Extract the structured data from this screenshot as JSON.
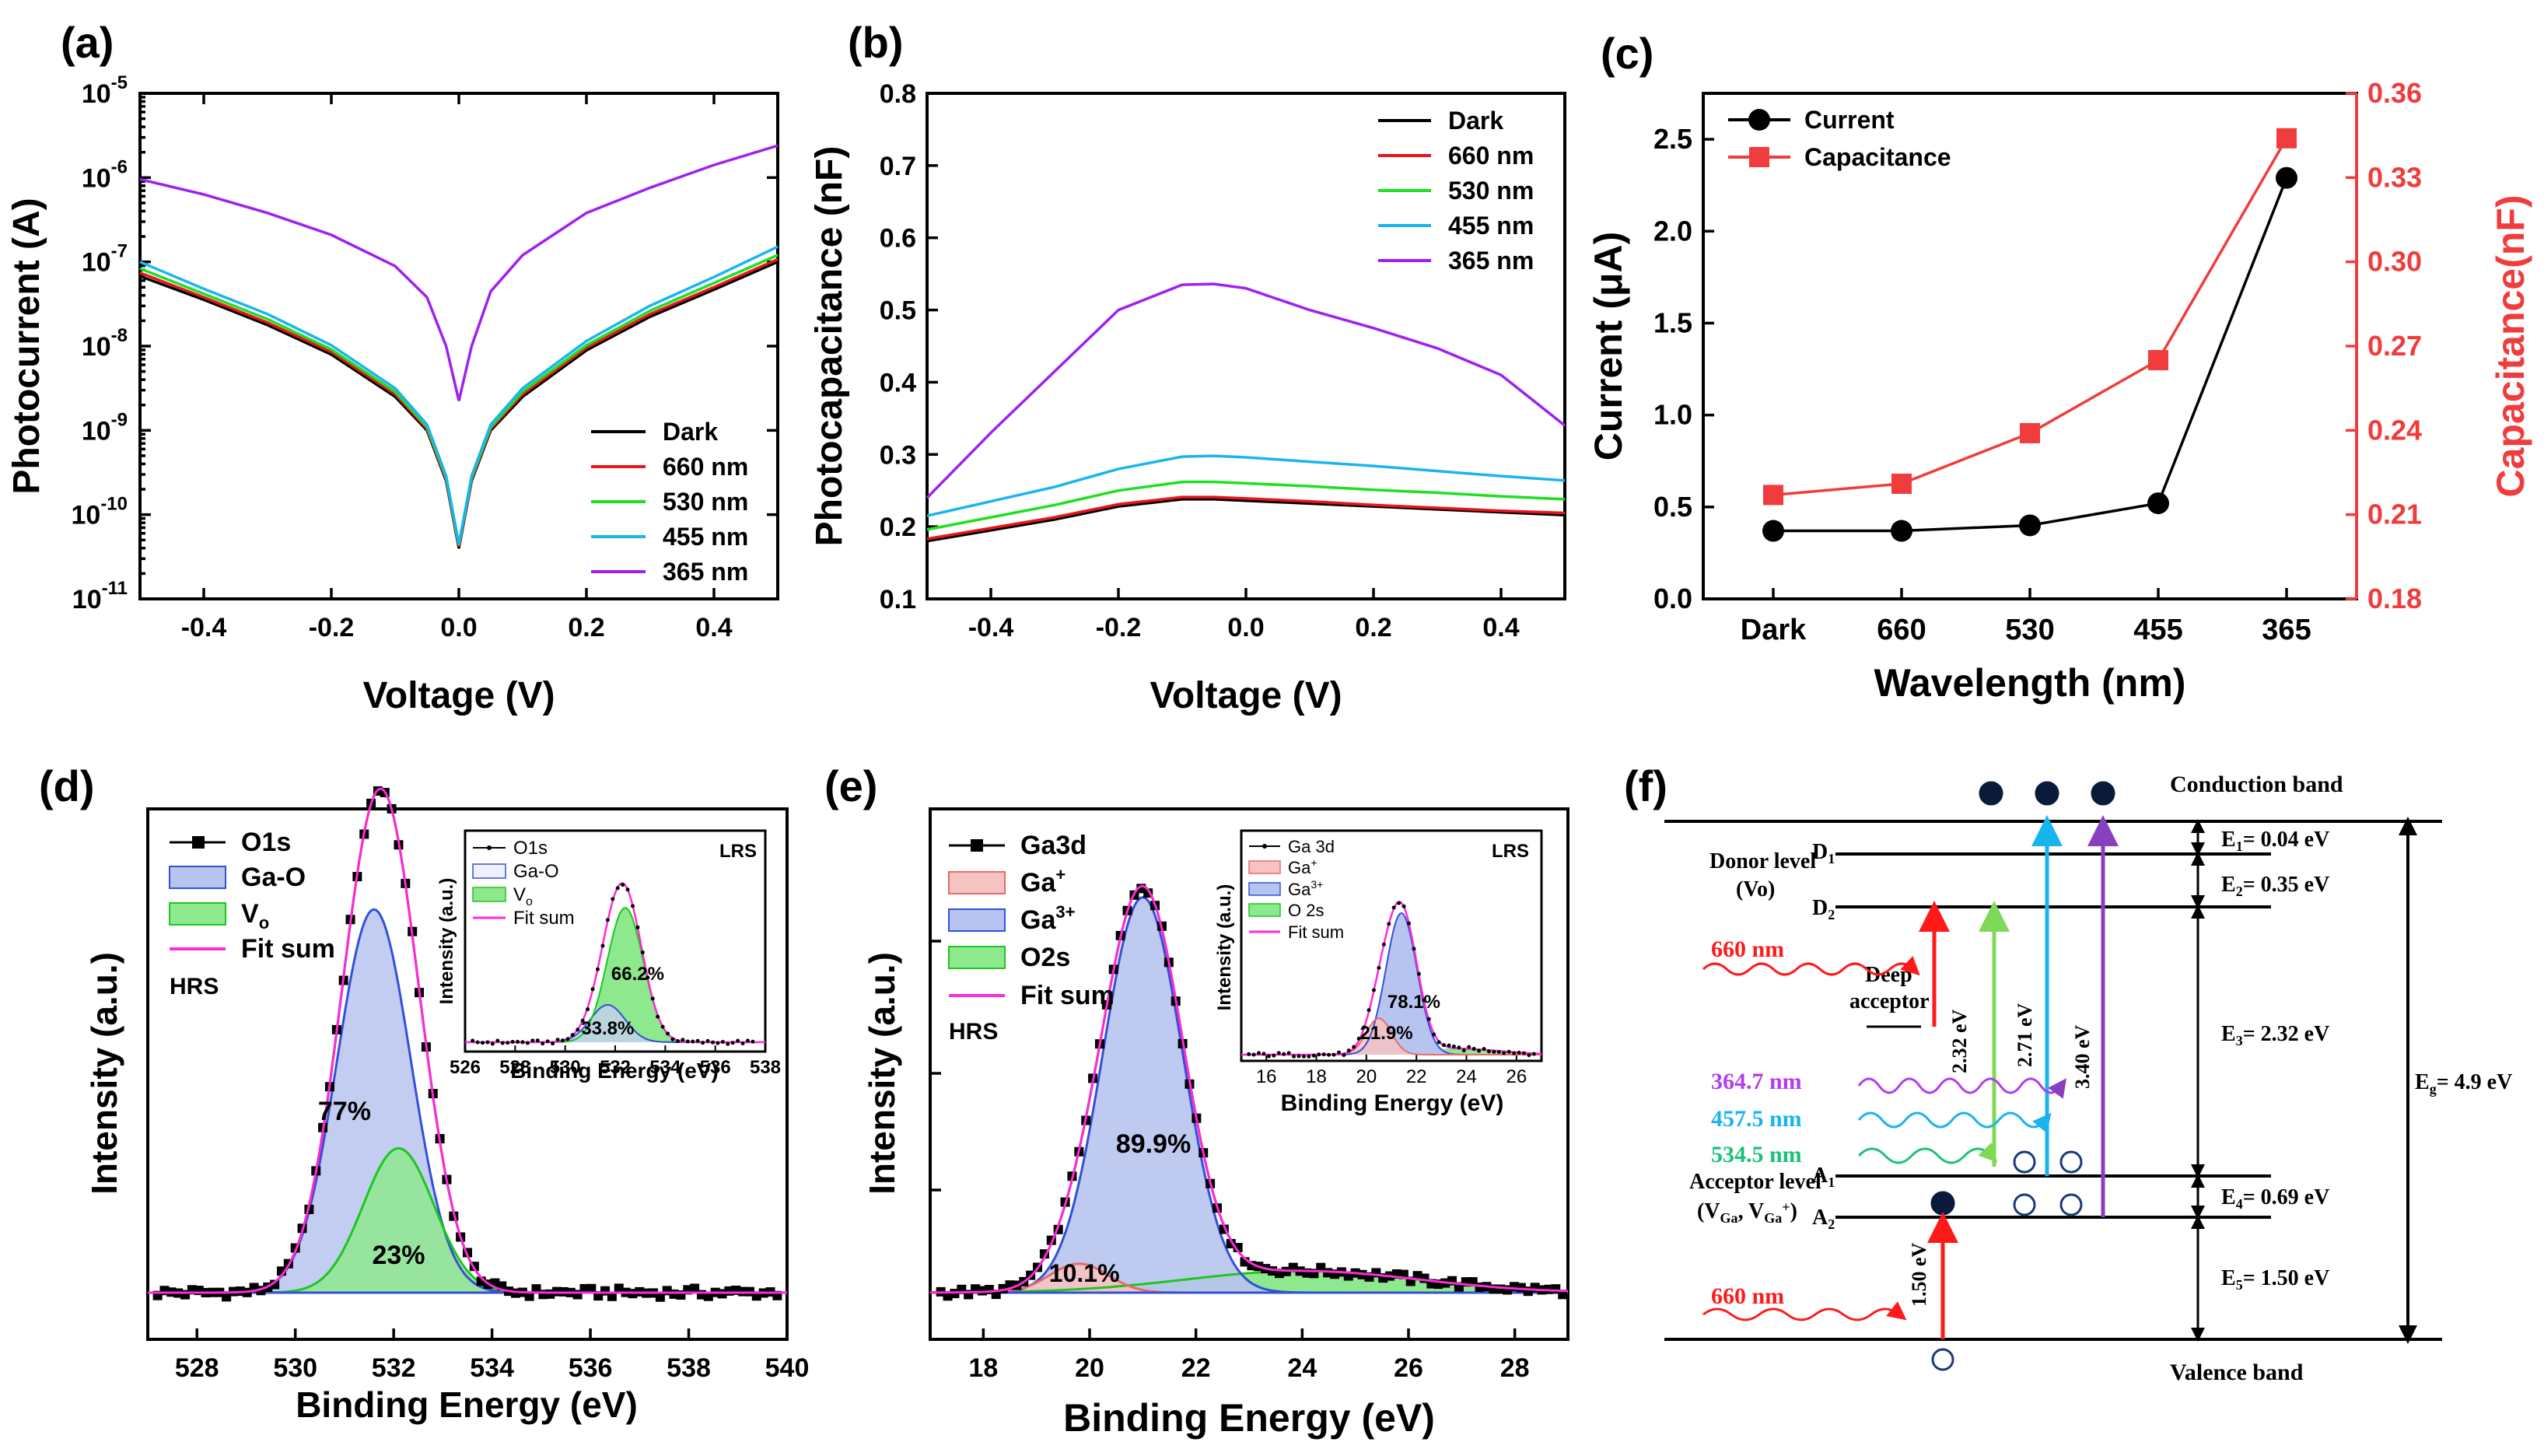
{
  "panels": {
    "a": "(a)",
    "b": "(b)",
    "c": "(c)",
    "d": "(d)",
    "e": "(e)",
    "f": "(f)"
  },
  "chart_data": [
    {
      "id": "a",
      "type": "line",
      "yscale": "log",
      "xlabel": "Voltage (V)",
      "ylabel": "Photocurrent (A)",
      "xlim": [
        -0.5,
        0.5
      ],
      "ylim_exp": [
        -11,
        -5
      ],
      "xticks": [
        "-0.4",
        "-0.2",
        "0.0",
        "0.2",
        "0.4"
      ],
      "yticks": [
        "10-11",
        "10-10",
        "10-9",
        "10-8",
        "10-7",
        "10-6",
        "10-5"
      ],
      "series": [
        {
          "name": "Dark",
          "color": "#000000",
          "x": [
            -0.5,
            -0.4,
            -0.3,
            -0.2,
            -0.1,
            -0.05,
            -0.02,
            0,
            0.02,
            0.05,
            0.1,
            0.2,
            0.3,
            0.4,
            0.5
          ],
          "y_log10": [
            -7.17,
            -7.45,
            -7.75,
            -8.1,
            -8.6,
            -9.0,
            -9.6,
            -10.4,
            -9.6,
            -9.0,
            -8.6,
            -8.05,
            -7.65,
            -7.33,
            -7.0
          ]
        },
        {
          "name": "660 nm",
          "color": "#e8151c",
          "x": [
            -0.5,
            -0.4,
            -0.3,
            -0.2,
            -0.1,
            -0.05,
            -0.02,
            0,
            0.02,
            0.05,
            0.1,
            0.2,
            0.3,
            0.4,
            0.5
          ],
          "y_log10": [
            -7.13,
            -7.42,
            -7.72,
            -8.07,
            -8.57,
            -8.98,
            -9.58,
            -10.38,
            -9.58,
            -8.98,
            -8.57,
            -8.02,
            -7.62,
            -7.3,
            -6.97
          ]
        },
        {
          "name": "530 nm",
          "color": "#1fe01f",
          "x": [
            -0.5,
            -0.4,
            -0.3,
            -0.2,
            -0.1,
            -0.05,
            -0.02,
            0,
            0.02,
            0.05,
            0.1,
            0.2,
            0.3,
            0.4,
            0.5
          ],
          "y_log10": [
            -7.08,
            -7.38,
            -7.68,
            -8.04,
            -8.54,
            -8.96,
            -9.56,
            -10.36,
            -9.56,
            -8.96,
            -8.54,
            -7.99,
            -7.58,
            -7.25,
            -6.92
          ]
        },
        {
          "name": "455 nm",
          "color": "#19b5f0",
          "x": [
            -0.5,
            -0.4,
            -0.3,
            -0.2,
            -0.1,
            -0.05,
            -0.02,
            0,
            0.02,
            0.05,
            0.1,
            0.2,
            0.3,
            0.4,
            0.5
          ],
          "y_log10": [
            -7.0,
            -7.32,
            -7.62,
            -7.99,
            -8.5,
            -8.93,
            -9.54,
            -10.35,
            -9.54,
            -8.93,
            -8.5,
            -7.94,
            -7.52,
            -7.18,
            -6.82
          ]
        },
        {
          "name": "365 nm",
          "color": "#a020f0",
          "x": [
            -0.5,
            -0.4,
            -0.3,
            -0.2,
            -0.1,
            -0.05,
            -0.02,
            0,
            0.02,
            0.05,
            0.1,
            0.2,
            0.3,
            0.4,
            0.5
          ],
          "y_log10": [
            -6.02,
            -6.2,
            -6.42,
            -6.68,
            -7.05,
            -7.42,
            -8.0,
            -8.65,
            -8.0,
            -7.35,
            -6.92,
            -6.42,
            -6.12,
            -5.85,
            -5.62
          ]
        }
      ]
    },
    {
      "id": "b",
      "type": "line",
      "xlabel": "Voltage (V)",
      "ylabel": "Photocapacitance (nF)",
      "xlim": [
        -0.5,
        0.5
      ],
      "ylim": [
        0.1,
        0.8
      ],
      "xticks": [
        "-0.4",
        "-0.2",
        "0.0",
        "0.2",
        "0.4"
      ],
      "yticks": [
        "0.1",
        "0.2",
        "0.3",
        "0.4",
        "0.5",
        "0.6",
        "0.7",
        "0.8"
      ],
      "series": [
        {
          "name": "Dark",
          "color": "#000000",
          "x": [
            -0.5,
            -0.4,
            -0.3,
            -0.2,
            -0.1,
            -0.05,
            0,
            0.1,
            0.2,
            0.3,
            0.4,
            0.5
          ],
          "y": [
            0.18,
            0.195,
            0.21,
            0.228,
            0.238,
            0.238,
            0.236,
            0.232,
            0.228,
            0.224,
            0.22,
            0.216
          ]
        },
        {
          "name": "660 nm",
          "color": "#e8151c",
          "x": [
            -0.5,
            -0.4,
            -0.3,
            -0.2,
            -0.1,
            -0.05,
            0,
            0.1,
            0.2,
            0.3,
            0.4,
            0.5
          ],
          "y": [
            0.183,
            0.198,
            0.213,
            0.231,
            0.241,
            0.241,
            0.239,
            0.235,
            0.23,
            0.226,
            0.222,
            0.219
          ]
        },
        {
          "name": "530 nm",
          "color": "#1fe01f",
          "x": [
            -0.5,
            -0.4,
            -0.3,
            -0.2,
            -0.1,
            -0.05,
            0,
            0.1,
            0.2,
            0.3,
            0.4,
            0.5
          ],
          "y": [
            0.196,
            0.213,
            0.23,
            0.25,
            0.262,
            0.262,
            0.26,
            0.256,
            0.251,
            0.247,
            0.242,
            0.238
          ]
        },
        {
          "name": "455 nm",
          "color": "#19b5f0",
          "x": [
            -0.5,
            -0.4,
            -0.3,
            -0.2,
            -0.1,
            -0.05,
            0,
            0.1,
            0.2,
            0.3,
            0.4,
            0.5
          ],
          "y": [
            0.215,
            0.235,
            0.255,
            0.28,
            0.297,
            0.298,
            0.296,
            0.29,
            0.284,
            0.277,
            0.27,
            0.264
          ]
        },
        {
          "name": "365 nm",
          "color": "#a020f0",
          "x": [
            -0.5,
            -0.4,
            -0.3,
            -0.2,
            -0.1,
            -0.05,
            0,
            0.1,
            0.2,
            0.3,
            0.4,
            0.5
          ],
          "y": [
            0.24,
            0.33,
            0.415,
            0.5,
            0.535,
            0.536,
            0.53,
            0.5,
            0.475,
            0.447,
            0.41,
            0.34
          ]
        }
      ]
    },
    {
      "id": "c",
      "type": "line",
      "xlabel": "Wavelength (nm)",
      "ylabel": "Current (μA)",
      "y2label": "Capacitance(nF)",
      "categories": [
        "Dark",
        "660",
        "530",
        "455",
        "365"
      ],
      "ylim": [
        0.0,
        2.75
      ],
      "y2lim": [
        0.18,
        0.36
      ],
      "yticks": [
        "0.0",
        "0.5",
        "1.0",
        "1.5",
        "2.0",
        "2.5"
      ],
      "y2ticks": [
        "0.18",
        "0.21",
        "0.24",
        "0.27",
        "0.30",
        "0.33",
        "0.36"
      ],
      "series": [
        {
          "name": "Current",
          "color": "#000000",
          "marker": "circle",
          "axis": "left",
          "values": [
            0.37,
            0.37,
            0.4,
            0.52,
            2.29
          ]
        },
        {
          "name": "Capacitance",
          "color": "#f03c3c",
          "marker": "square",
          "axis": "right",
          "values": [
            0.217,
            0.221,
            0.239,
            0.265,
            0.344
          ]
        }
      ]
    },
    {
      "id": "d",
      "type": "area",
      "xlabel": "Binding Energy (eV)",
      "ylabel": "Intensity (a.u.)",
      "xlim": [
        527,
        540
      ],
      "xticks": [
        "528",
        "530",
        "532",
        "534",
        "536",
        "538",
        "540"
      ],
      "tag": "HRS",
      "legend": [
        "O1s",
        "Ga-O",
        "V",
        "Fit sum"
      ],
      "legend_sub": "o",
      "labels": {
        "gao": "77%",
        "vo": "23%"
      },
      "peaks": [
        {
          "name": "Ga-O",
          "center": 531.6,
          "sigma": 0.75,
          "height": 0.77,
          "color": "#6b7fe0"
        },
        {
          "name": "V_o",
          "center": 532.1,
          "sigma": 0.72,
          "height": 0.29,
          "color": "#2bd52b"
        }
      ],
      "inset": {
        "tag": "LRS",
        "xlabel": "Binding Energy (eV)",
        "ylabel": "Intensity (a.u.)",
        "xlim": [
          526,
          538
        ],
        "xticks": [
          "526",
          "528",
          "530",
          "532",
          "534",
          "536",
          "538"
        ],
        "legend": [
          "O1s",
          "Ga-O",
          "V",
          "Fit sum"
        ],
        "labels": {
          "vo": "66.2%",
          "gao": "33.8%"
        }
      }
    },
    {
      "id": "e",
      "type": "area",
      "xlabel": "Binding Energy (eV)",
      "ylabel": "Intensity (a.u.)",
      "xlim": [
        17,
        29
      ],
      "xticks": [
        "18",
        "20",
        "22",
        "24",
        "26",
        "28"
      ],
      "tag": "HRS",
      "legend": [
        "Ga3d",
        "Ga",
        "Ga",
        "O2s",
        "Fit sum"
      ],
      "legend_sup": [
        "+",
        "3+"
      ],
      "labels": {
        "ga3": "89.9%",
        "ga1": "10.1%"
      },
      "inset": {
        "tag": "LRS",
        "xlabel": "Binding Energy (eV)",
        "ylabel": "Intensity (a.u.)",
        "xticks": [
          "16",
          "18",
          "20",
          "22",
          "24",
          "26"
        ],
        "legend": [
          "Ga 3d",
          "Ga",
          "Ga",
          "O 2s",
          "Fit sum"
        ],
        "labels": {
          "ga3": "78.1%",
          "ga1": "21.9%"
        }
      }
    }
  ],
  "band_diagram": {
    "conduction": "Conduction band",
    "valence": "Valence band",
    "donor": "Donor level",
    "donor_sub": "(Vo)",
    "acceptor": "Acceptor level",
    "acceptor_sub": "(V",
    "deep1": "Deep",
    "deep2": "acceptor",
    "d1": "D",
    "d2": "D",
    "a1": "A",
    "a2": "A",
    "e1": "= 0.04 eV",
    "e2": "= 0.35 eV",
    "e3": "= 2.32 eV",
    "e4": "= 0.69 eV",
    "e5": "= 1.50 eV",
    "eg": "= 4.9 eV",
    "nm660a": "660 nm",
    "nm660b": "660 nm",
    "nm3647": "364.7 nm",
    "nm4575": "457.5 nm",
    "nm5345": "534.5 nm",
    "ev232": "2.32 eV",
    "ev271": "2.71 eV",
    "ev340": "3.40 eV",
    "ev150": "1.50 eV",
    "colors": {
      "red": "#ff1a1a",
      "green": "#7ed957",
      "cyan": "#18b4ee",
      "purple": "#8a3fbf",
      "purple_wave": "#b43cf0",
      "green_wave": "#19c27a"
    }
  }
}
